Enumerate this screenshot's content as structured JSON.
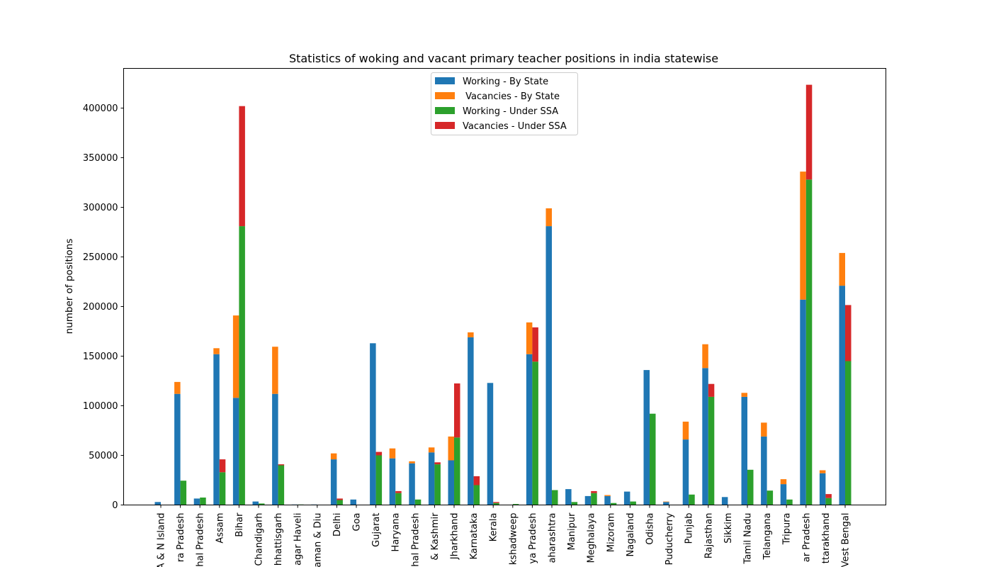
{
  "chart_data": {
    "type": "bar",
    "title": "Statistics of woking and vacant primary teacher positions in india statewise",
    "xlabel": "",
    "ylabel": "number of positions",
    "ylim": [
      0,
      440000
    ],
    "yticks": [
      0,
      50000,
      100000,
      150000,
      200000,
      250000,
      300000,
      350000,
      400000
    ],
    "ytick_labels": [
      "0",
      "50000",
      "100000",
      "150000",
      "200000",
      "250000",
      "300000",
      "350000",
      "400000"
    ],
    "grid": false,
    "legend_position": "top-center",
    "stacked": true,
    "categories": [
      "A & N Island",
      "Andhra Pradesh",
      "Arunachal Pradesh",
      "Assam",
      "Bihar",
      "Chandigarh",
      "Chhattisgarh",
      "Dadra & Nagar Haveli",
      "Daman & Diu",
      "Delhi",
      "Goa",
      "Gujarat",
      "Haryana",
      "Himachal Pradesh",
      "Jammu & Kashmir",
      "Jharkhand",
      "Karnataka",
      "Kerala",
      "Lakshadweep",
      "Madhya Pradesh",
      "Maharashtra",
      "Manipur",
      "Meghalaya",
      "Mizoram",
      "Nagaland",
      "Odisha",
      "Puducherry",
      "Punjab",
      "Rajasthan",
      "Sikkim",
      "Tamil Nadu",
      "Telangana",
      "Tripura",
      "Uttar Pradesh",
      "Uttarakhand",
      "West Bengal"
    ],
    "category_labels_shown": [
      "A & N Island",
      "ra Pradesh",
      "hal Pradesh",
      "Assam",
      "Bihar",
      "Chandigarh",
      "hhattisgarh",
      "agar Haveli",
      "aman & Diu",
      "Delhi",
      "Goa",
      "Gujarat",
      "Haryana",
      "hal Pradesh",
      "& Kashmir",
      "Jharkhand",
      "Karnataka",
      "Kerala",
      "kshadweep",
      "ya Pradesh",
      "aharashtra",
      "Manipur",
      "Meghalaya",
      "Mizoram",
      "Nagaland",
      "Odisha",
      "Puducherry",
      "Punjab",
      "Rajasthan",
      "Sikkim",
      "Tamil Nadu",
      "Telangana",
      "Tripura",
      "ar Pradesh",
      "ttarakhand",
      "Vest Bengal"
    ],
    "series": [
      {
        "name": "Working - By State",
        "color": "#1f77b4",
        "group": "By State",
        "values": [
          3000,
          112000,
          6500,
          152000,
          108000,
          3500,
          112000,
          500,
          500,
          46000,
          5500,
          163000,
          47000,
          42000,
          53000,
          45000,
          169000,
          123000,
          0,
          152000,
          281000,
          16000,
          9000,
          9000,
          13500,
          136000,
          3000,
          66000,
          138000,
          8000,
          109000,
          69000,
          21000,
          207000,
          32000,
          221000
        ]
      },
      {
        "name": " Vacancies - By State",
        "color": "#ff7f0e",
        "group": "By State",
        "values": [
          0,
          12000,
          0,
          6000,
          83000,
          0,
          47500,
          0,
          0,
          6000,
          0,
          0,
          10000,
          2000,
          5000,
          24000,
          5000,
          0,
          0,
          32000,
          18000,
          0,
          0,
          1000,
          0,
          0,
          500,
          18000,
          24000,
          0,
          4000,
          14000,
          5000,
          129000,
          3000,
          33000
        ]
      },
      {
        "name": "Working - Under SSA",
        "color": "#2ca02c",
        "group": "Under SSA",
        "values": [
          0,
          24500,
          7500,
          33000,
          281000,
          1500,
          40000,
          500,
          0,
          5000,
          0,
          50000,
          12000,
          5500,
          41000,
          68000,
          20000,
          2000,
          1000,
          144500,
          15000,
          3000,
          12000,
          2000,
          3500,
          92000,
          0,
          10500,
          109000,
          0,
          35500,
          14500,
          5500,
          328000,
          7000,
          145000
        ]
      },
      {
        "name": "Vacancies - Under SSA",
        "color": "#d62728",
        "group": "Under SSA",
        "values": [
          0,
          0,
          0,
          13000,
          121000,
          0,
          1000,
          0,
          0,
          1500,
          0,
          3500,
          2000,
          0,
          2000,
          54500,
          9000,
          1000,
          0,
          34500,
          0,
          0,
          2000,
          0,
          0,
          0,
          0,
          0,
          13000,
          0,
          0,
          0,
          0,
          95500,
          4000,
          56500
        ]
      }
    ]
  }
}
